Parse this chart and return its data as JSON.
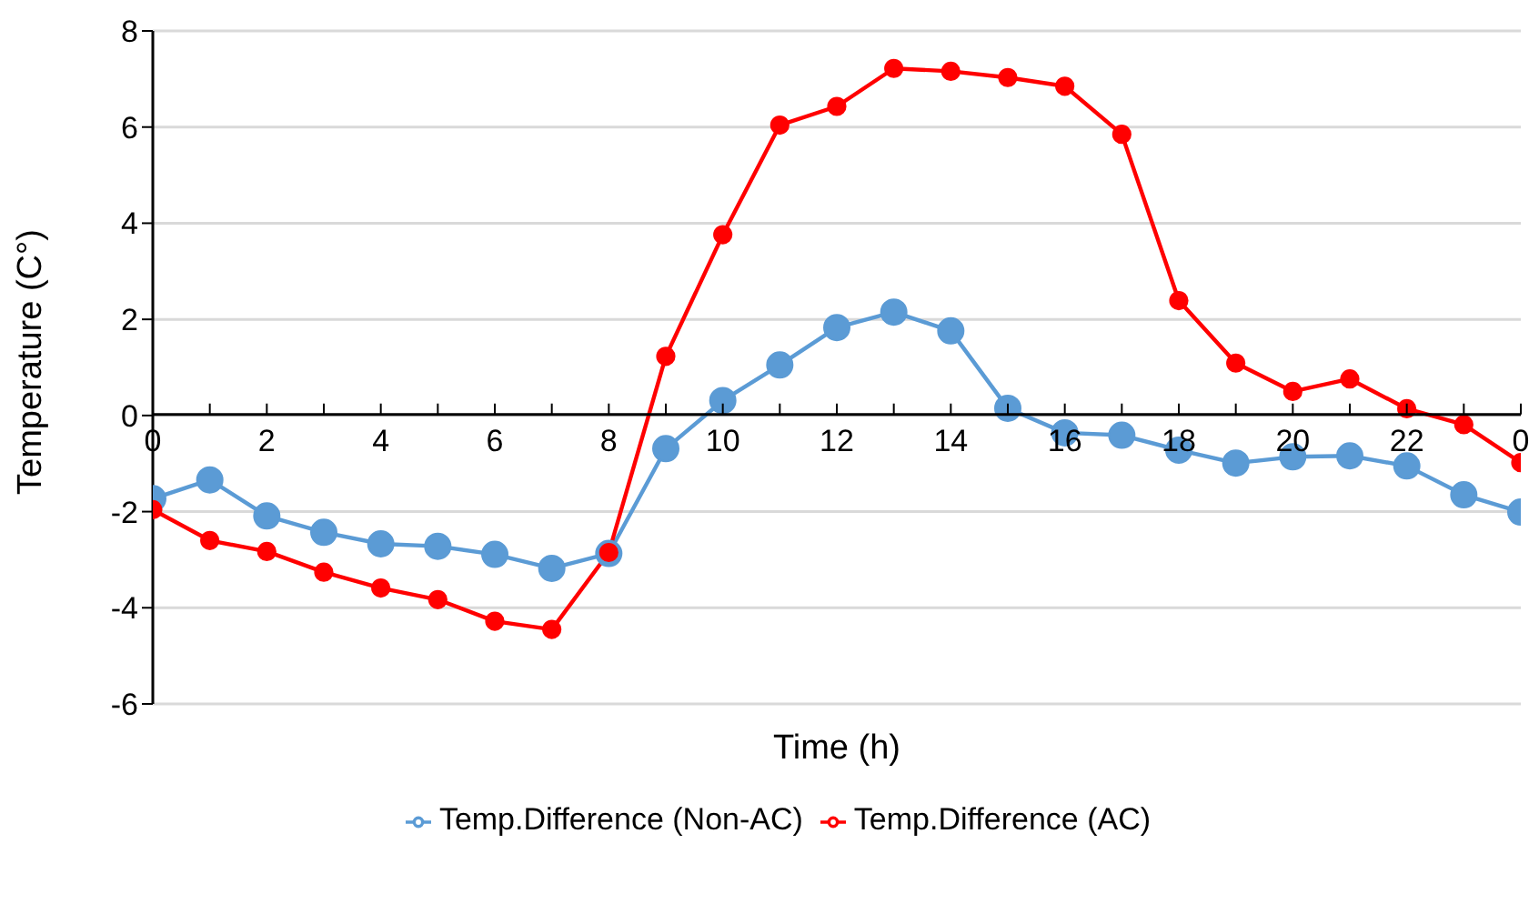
{
  "chart_data": {
    "type": "line",
    "xlabel": "Time (h)",
    "ylabel": "Temperature (C°)",
    "categories": [
      "0",
      null,
      "2",
      null,
      "4",
      null,
      "6",
      null,
      "8",
      null,
      "10",
      null,
      "12",
      null,
      "14",
      null,
      "16",
      null,
      "18",
      null,
      "20",
      null,
      "22",
      null,
      "0"
    ],
    "series": [
      {
        "name": "Temp.Difference (Non-AC)",
        "color": "#5b9bd5",
        "values": [
          -1.73,
          -1.34,
          -2.09,
          -2.43,
          -2.67,
          -2.72,
          -2.89,
          -3.18,
          -2.87,
          -0.69,
          0.31,
          1.05,
          1.83,
          2.15,
          1.76,
          0.15,
          -0.36,
          -0.41,
          -0.72,
          -0.99,
          -0.86,
          -0.84,
          -1.05,
          -1.65,
          -2.01
        ]
      },
      {
        "name": "Temp.Difference (AC)",
        "color": "#ff0000",
        "values": [
          -1.96,
          -2.6,
          -2.83,
          -3.26,
          -3.59,
          -3.83,
          -4.28,
          -4.45,
          -2.85,
          1.23,
          3.76,
          6.04,
          6.43,
          7.22,
          7.16,
          7.03,
          6.85,
          5.85,
          2.39,
          1.09,
          0.5,
          0.76,
          0.14,
          -0.19,
          -0.98
        ]
      }
    ],
    "ylim": [
      -6,
      8
    ],
    "yticks": [
      -6,
      -4,
      -2,
      0,
      2,
      4,
      6,
      8
    ],
    "grid": "y",
    "legend": "bottom",
    "marker": "circle",
    "line_style": "solid"
  }
}
